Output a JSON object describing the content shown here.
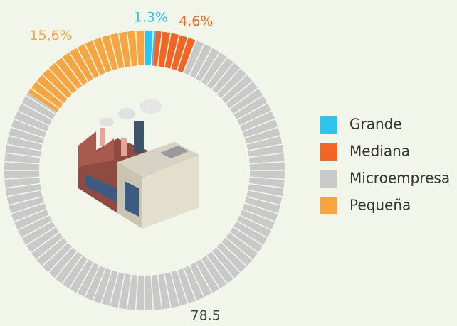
{
  "chart_data": {
    "type": "donut",
    "categories": [
      "Grande",
      "Mediana",
      "Microempresa",
      "Pequeña"
    ],
    "values": [
      1.3,
      4.6,
      78.5,
      15.6
    ],
    "value_labels": [
      "1.3%",
      "4,6%",
      "78.5",
      "15,6%"
    ],
    "colors": [
      "#2ec4ef",
      "#f26522",
      "#c9c9c9",
      "#f7a540"
    ],
    "label_colors": [
      "#2ec4ef",
      "#f26522",
      "#444444",
      "#f7a540"
    ]
  }
}
